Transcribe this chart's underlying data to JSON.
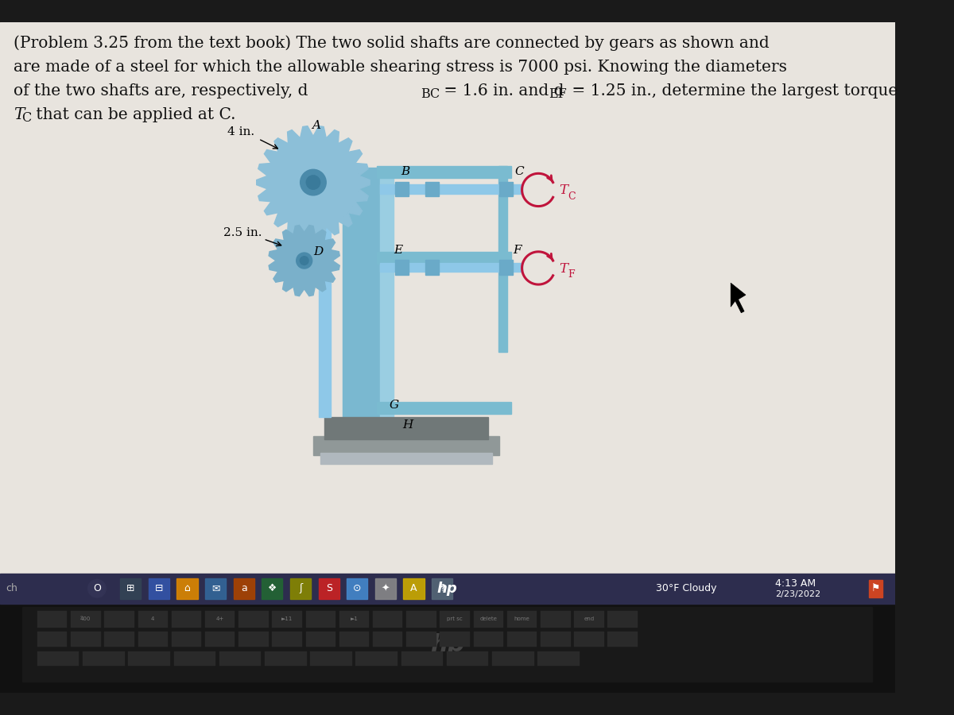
{
  "bg_laptop": "#1a1a1a",
  "bg_screen": "#e8e4de",
  "bg_taskbar": "#2d2d4e",
  "bg_keyboard": "#111111",
  "text_color": "#111111",
  "gear_color_large": "#8cbfd8",
  "gear_color_small": "#7ab0ca",
  "shaft_color": "#8ec8e8",
  "shaft_dark": "#6aaac8",
  "base_color": "#8a9298",
  "base_light": "#b0b8be",
  "torque_color": "#c0143c",
  "wall_color": "#9acee2",
  "wall_dark": "#7ab8d0",
  "cursor_color": "#111111",
  "title_line1": "(Problem 3.25 from the text book) The two solid shafts are connected by gears as shown and",
  "title_line2": "are made of a steel for which the allowable shearing stress is 7000 psi. Knowing the diameters",
  "title_line3_pre": "of the two shafts are, respectively, d",
  "title_line3_sub1": "BC",
  "title_line3_mid": " = 1.6 in. and d",
  "title_line3_sub2": "EF",
  "title_line3_end": " = 1.25 in., determine the largest torque",
  "title_line4_T": "T",
  "title_line4_sub": "C",
  "title_line4_end": " that can be applied at C.",
  "label_4in": "4 in.",
  "label_25in": "2.5 in.",
  "taskbar_weather": "30°F Cloudy",
  "taskbar_time": "4:13 AM",
  "taskbar_date": "2/23/2022",
  "font_size_body": 14.5,
  "font_size_label": 11
}
